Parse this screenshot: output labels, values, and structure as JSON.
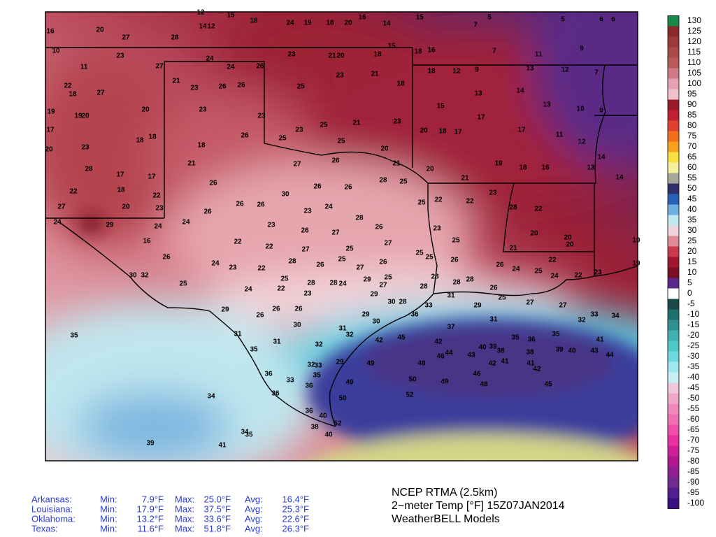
{
  "map": {
    "stations": [
      16,
      20,
      27,
      28,
      12,
      15,
      18,
      14,
      12,
      24,
      19,
      18,
      20,
      16,
      14,
      15,
      7,
      5,
      5,
      6,
      6,
      10,
      23,
      11,
      27,
      24,
      24,
      26,
      23,
      21,
      20,
      18,
      15,
      18,
      16,
      7,
      11,
      9,
      22,
      18,
      27,
      21,
      23,
      26,
      26,
      25,
      23,
      21,
      18,
      18,
      12,
      9,
      13,
      12,
      7,
      19,
      19,
      20,
      20,
      23,
      23,
      23,
      25,
      21,
      23,
      15,
      13,
      14,
      13,
      10,
      9,
      17,
      23,
      18,
      18,
      18,
      26,
      25,
      25,
      20,
      20,
      18,
      17,
      17,
      17,
      11,
      12,
      20,
      28,
      17,
      17,
      21,
      27,
      26,
      21,
      20,
      21,
      19,
      18,
      16,
      13,
      14,
      14,
      22,
      18,
      22,
      26,
      26,
      26,
      30,
      26,
      26,
      28,
      25,
      22,
      23,
      28,
      22,
      27,
      20,
      23,
      26,
      23,
      24,
      28,
      25,
      22,
      24,
      29,
      24,
      24,
      22,
      23,
      26,
      27,
      26,
      23,
      20,
      20,
      16,
      26,
      22,
      27,
      25,
      27,
      25,
      25,
      21,
      20,
      19,
      24,
      23,
      22,
      28,
      26,
      25,
      27,
      26,
      25,
      26,
      26,
      24,
      22,
      30,
      32,
      25,
      25,
      28,
      28,
      29,
      25,
      28,
      28,
      25,
      23,
      19,
      24,
      22,
      23,
      24,
      27,
      28,
      28,
      26,
      24,
      22,
      29,
      26,
      26,
      26,
      29,
      30,
      28,
      33,
      31,
      29,
      25,
      27,
      27,
      29,
      36,
      32,
      33,
      34,
      35,
      31,
      30,
      31,
      30,
      37,
      31,
      35,
      36,
      35,
      41,
      31,
      32,
      42,
      45,
      42,
      40,
      39,
      38,
      38,
      39,
      40,
      43,
      44,
      35,
      32,
      33,
      32,
      29,
      49,
      48,
      46,
      44,
      43,
      42,
      41,
      41,
      36,
      35,
      49,
      50,
      49,
      46,
      42,
      33,
      36,
      36,
      34,
      50,
      52,
      48,
      45,
      36,
      40,
      38,
      52,
      40,
      34,
      35,
      39,
      41
    ]
  },
  "colorbar": {
    "ticks": [
      130,
      125,
      120,
      115,
      110,
      105,
      100,
      95,
      90,
      85,
      80,
      75,
      70,
      65,
      60,
      55,
      50,
      45,
      40,
      35,
      30,
      25,
      20,
      15,
      10,
      5,
      0,
      -5,
      -10,
      -15,
      -20,
      -25,
      -30,
      -35,
      -40,
      -45,
      -50,
      -55,
      -60,
      -65,
      -70,
      -75,
      -80,
      -85,
      -90,
      -95,
      -100
    ]
  },
  "stats": {
    "min_label": "Min:",
    "max_label": "Max:",
    "avg_label": "Avg:",
    "rows": [
      {
        "state": "Arkansas:",
        "min": "7.9°F",
        "max": "25.0°F",
        "avg": "16.4°F"
      },
      {
        "state": "Louisiana:",
        "min": "17.9°F",
        "max": "37.5°F",
        "avg": "25.3°F"
      },
      {
        "state": "Oklahoma:",
        "min": "13.2°F",
        "max": "33.6°F",
        "avg": "22.6°F"
      },
      {
        "state": "Texas:",
        "min": "11.6°F",
        "max": "51.8°F",
        "avg": "26.3°F"
      }
    ]
  },
  "title": {
    "lines": [
      "NCEP RTMA (2.5km)",
      "2−meter Temp [°F] 15Z07JAN2014",
      "WeatherBELL Models"
    ]
  }
}
